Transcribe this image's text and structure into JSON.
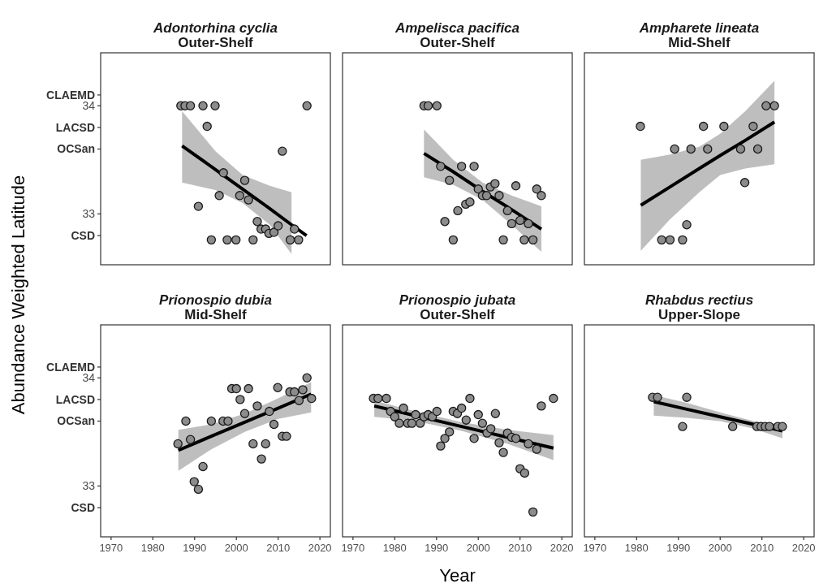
{
  "chart_data": [
    {
      "type": "scatter",
      "title": "Adontorhina cyclia",
      "subtitle": "Outer-Shelf",
      "ylabel": "Abundance Weighted Latitude",
      "xlim": [
        1967.5,
        2022.5
      ],
      "ylim": [
        32.53,
        34.49
      ],
      "yticks": [
        {
          "value": 32.8,
          "label": "CSD"
        },
        {
          "value": 33,
          "label": "33"
        },
        {
          "value": 33.6,
          "label": "OCSan"
        },
        {
          "value": 33.8,
          "label": "LACSD"
        },
        {
          "value": 34,
          "label": "34"
        },
        {
          "value": 34.1,
          "label": "CLAEMD"
        }
      ],
      "tick_labels": "y",
      "marker": "circle",
      "series": [
        {
          "color": "#8c8c8c",
          "x": [
            1986.7,
            1987.7,
            1989,
            1992,
            1994.9,
            2016.9,
            1993,
            2011,
            1996.9,
            2002,
            1995.9,
            2000.8,
            2002.9,
            1990.9,
            2005,
            2005.9,
            2007,
            2007.8,
            2009,
            2010,
            2013.9,
            1994,
            1997.8,
            1999.9,
            2004,
            2012.9,
            2014.9
          ],
          "values": [
            34,
            34,
            34,
            34,
            34,
            34,
            33.81,
            33.58,
            33.38,
            33.31,
            33.17,
            33.17,
            33.13,
            33.07,
            32.93,
            32.86,
            32.86,
            32.82,
            32.83,
            32.89,
            32.86,
            32.76,
            32.76,
            32.76,
            32.76,
            32.76,
            32.76
          ]
        },
        {
          "type": "line",
          "marker": "none",
          "color": "#000000",
          "x": [
            1987,
            1995,
            2001.5,
            2008,
            2013.2,
            2016.8
          ],
          "values": [
            33.63,
            33.41,
            33.23,
            33.05,
            32.9,
            32.8
          ],
          "upper": [
            33.95,
            33.58,
            33.36,
            33.26,
            33.2,
            null
          ],
          "lower": [
            33.29,
            33.22,
            33.1,
            32.9,
            32.63,
            null
          ]
        }
      ]
    },
    {
      "type": "scatter",
      "title": "Ampelisca pacifica",
      "subtitle": "Outer-Shelf",
      "xlim": [
        1967.5,
        2022.5
      ],
      "ylim": [
        32.53,
        34.49
      ],
      "tick_labels": false,
      "marker": "circle",
      "series": [
        {
          "color": "#8c8c8c",
          "x": [
            1987,
            1988,
            1990.1,
            1991,
            1996,
            1999,
            1993.1,
            2000,
            2001,
            2002,
            2002.9,
            2004,
            2005,
            2009,
            2014,
            2015.1,
            1997,
            1998,
            1995.1,
            1992,
            2007,
            2008,
            2010,
            2012,
            1994,
            2006,
            2011,
            2013.1
          ],
          "values": [
            34,
            34,
            34,
            33.44,
            33.44,
            33.44,
            33.31,
            33.23,
            33.17,
            33.17,
            33.25,
            33.28,
            33.17,
            33.26,
            33.23,
            33.17,
            33.09,
            33.11,
            33.03,
            32.93,
            33.03,
            32.91,
            32.94,
            32.91,
            32.76,
            32.76,
            32.76,
            32.76
          ]
        },
        {
          "type": "line",
          "marker": "none",
          "color": "#000000",
          "x": [
            1987,
            1994,
            2001,
            2008,
            2015.1
          ],
          "values": [
            33.56,
            33.39,
            33.21,
            33.04,
            32.86
          ],
          "upper": [
            33.78,
            33.5,
            33.29,
            33.17,
            33.07
          ],
          "lower": [
            33.34,
            33.27,
            33.13,
            32.9,
            32.65
          ]
        }
      ]
    },
    {
      "type": "scatter",
      "title": "Ampharete lineata",
      "subtitle": "Mid-Shelf",
      "xlim": [
        1967.5,
        2022.5
      ],
      "ylim": [
        32.53,
        34.49
      ],
      "tick_labels": false,
      "marker": "circle",
      "series": [
        {
          "color": "#8c8c8c",
          "x": [
            1980.9,
            1996,
            2000.9,
            2007.9,
            1989.1,
            1993,
            1997,
            2004.9,
            2009,
            2011,
            2013,
            2005.9,
            1992,
            1986,
            1988,
            1991
          ],
          "values": [
            33.81,
            33.81,
            33.81,
            33.81,
            33.6,
            33.6,
            33.6,
            33.6,
            33.6,
            34,
            34,
            33.29,
            32.9,
            32.76,
            32.76,
            32.76
          ]
        },
        {
          "type": "line",
          "marker": "none",
          "color": "#000000",
          "x": [
            1981,
            1988,
            1995,
            2000,
            2006,
            2013
          ],
          "values": [
            33.08,
            33.25,
            33.42,
            33.54,
            33.68,
            33.85
          ],
          "upper": [
            33.5,
            33.55,
            33.62,
            33.74,
            33.95,
            34.23
          ],
          "lower": [
            32.66,
            32.95,
            33.2,
            33.36,
            33.42,
            33.46
          ]
        }
      ]
    },
    {
      "type": "scatter",
      "title": "Prionospio dubia",
      "subtitle": "Mid-Shelf",
      "xlim": [
        1967.5,
        2022.5
      ],
      "xticks": [
        1970,
        1980,
        1990,
        2000,
        2010,
        2020
      ],
      "ylim": [
        32.53,
        34.49
      ],
      "yticks": [
        {
          "value": 32.8,
          "label": "CSD"
        },
        {
          "value": 33,
          "label": "33"
        },
        {
          "value": 33.6,
          "label": "OCSan"
        },
        {
          "value": 33.8,
          "label": "LACSD"
        },
        {
          "value": 34,
          "label": "34"
        },
        {
          "value": 34.1,
          "label": "CLAEMD"
        }
      ],
      "marker": "circle",
      "series": [
        {
          "color": "#8c8c8c",
          "x": [
            1986,
            1987.9,
            1989,
            1989.9,
            1990.9,
            1992,
            1994,
            1996.8,
            1998,
            1998.9,
            2000,
            2000.9,
            2002,
            2002.9,
            2004,
            2005,
            2006,
            2007,
            2007.9,
            2009,
            2009.9,
            2011,
            2012,
            2012.8,
            2013.9,
            2015,
            2015.9,
            2016.9,
            2018
          ],
          "values": [
            33.39,
            33.6,
            33.43,
            33.04,
            32.97,
            33.18,
            33.6,
            33.6,
            33.6,
            33.9,
            33.9,
            33.8,
            33.67,
            33.9,
            33.39,
            33.74,
            33.25,
            33.39,
            33.69,
            33.57,
            33.91,
            33.46,
            33.46,
            33.87,
            33.87,
            33.79,
            33.89,
            34,
            33.81
          ]
        },
        {
          "type": "line",
          "marker": "none",
          "color": "#000000",
          "x": [
            1986.1,
            1994,
            2002,
            2010,
            2017.9
          ],
          "values": [
            33.33,
            33.46,
            33.59,
            33.72,
            33.85
          ],
          "upper": [
            33.52,
            33.57,
            33.67,
            33.81,
            33.96
          ],
          "lower": [
            33.14,
            33.34,
            33.5,
            33.62,
            33.68
          ]
        }
      ]
    },
    {
      "type": "scatter",
      "title": "Prionospio jubata",
      "subtitle": "Outer-Shelf",
      "xlabel": "Year",
      "xlim": [
        1967.5,
        2022.5
      ],
      "xticks": [
        1970,
        1980,
        1990,
        2000,
        2010,
        2020
      ],
      "ylim": [
        32.53,
        34.49
      ],
      "tick_labels": "x",
      "marker": "circle",
      "series": [
        {
          "color": "#8c8c8c",
          "x": [
            1974.9,
            1976,
            1978,
            1979,
            1980,
            1981.1,
            1982.1,
            1983.1,
            1984.1,
            1985,
            1986.1,
            1987,
            1988,
            1989,
            1990.1,
            1991,
            1992,
            1993.1,
            1994,
            1995,
            1996,
            1997.1,
            1998,
            1999,
            2000,
            2001,
            2002.1,
            2003,
            2004.1,
            2005,
            2006,
            2007,
            2008,
            2009,
            2010,
            2011.1,
            2012,
            2013.1,
            2014,
            2015.1,
            2018
          ],
          "values": [
            33.81,
            33.81,
            33.81,
            33.69,
            33.64,
            33.58,
            33.72,
            33.58,
            33.58,
            33.66,
            33.58,
            33.64,
            33.66,
            33.64,
            33.69,
            33.37,
            33.44,
            33.5,
            33.69,
            33.67,
            33.72,
            33.61,
            33.81,
            33.44,
            33.66,
            33.58,
            33.49,
            33.53,
            33.67,
            33.4,
            33.31,
            33.49,
            33.45,
            33.44,
            33.16,
            33.12,
            33.39,
            32.76,
            33.34,
            33.74,
            33.81
          ]
        },
        {
          "type": "line",
          "marker": "none",
          "color": "#000000",
          "x": [
            1975.1,
            1985,
            1996,
            2007,
            2018
          ],
          "values": [
            33.74,
            33.65,
            33.55,
            33.45,
            33.35
          ],
          "upper": [
            33.79,
            33.69,
            33.59,
            33.52,
            33.47
          ],
          "lower": [
            33.64,
            33.6,
            33.51,
            33.39,
            33.24
          ]
        }
      ]
    },
    {
      "type": "scatter",
      "title": "Rhabdus rectius",
      "subtitle": "Upper-Slope",
      "xlim": [
        1967.5,
        2022.5
      ],
      "xticks": [
        1970,
        1980,
        1990,
        2000,
        2010,
        2020
      ],
      "ylim": [
        32.53,
        34.49
      ],
      "tick_labels": "x",
      "marker": "circle",
      "series": [
        {
          "color": "#8c8c8c",
          "x": [
            1983.8,
            1985,
            1992,
            1991,
            2003,
            2008.8,
            2009.8,
            2010.8,
            2011.8,
            2013.8,
            2014.9
          ],
          "values": [
            33.82,
            33.82,
            33.82,
            33.55,
            33.55,
            33.55,
            33.55,
            33.55,
            33.55,
            33.55,
            33.55
          ]
        },
        {
          "type": "line",
          "marker": "none",
          "color": "#000000",
          "x": [
            1984.1,
            1992,
            2000,
            2008,
            2014.9
          ],
          "values": [
            33.78,
            33.71,
            33.64,
            33.57,
            33.51
          ],
          "upper": [
            33.84,
            33.77,
            33.68,
            33.6,
            33.57
          ],
          "lower": [
            33.65,
            33.63,
            33.6,
            33.53,
            33.44
          ]
        }
      ]
    }
  ]
}
